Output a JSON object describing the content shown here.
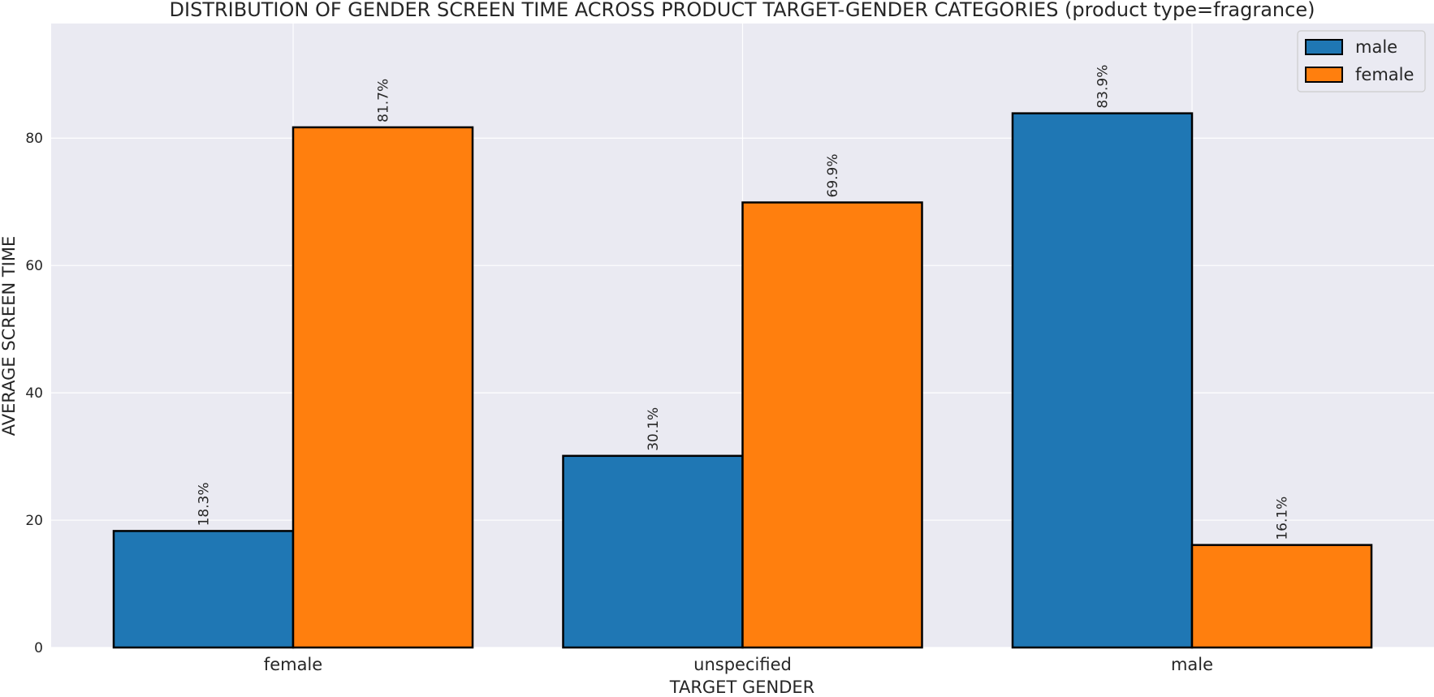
{
  "chart_data": {
    "type": "bar",
    "title": "DISTRIBUTION OF GENDER SCREEN TIME ACROSS PRODUCT TARGET-GENDER CATEGORIES (product type=fragrance)",
    "xlabel": "TARGET GENDER",
    "ylabel": "AVERAGE SCREEN TIME",
    "categories": [
      "female",
      "unspecified",
      "male"
    ],
    "series": [
      {
        "name": "male",
        "color": "#1f77b4",
        "values": [
          18.3,
          30.1,
          83.9
        ],
        "labels": [
          "18.3%",
          "30.1%",
          "83.9%"
        ]
      },
      {
        "name": "female",
        "color": "#ff7f0e",
        "values": [
          81.7,
          69.9,
          16.1
        ],
        "labels": [
          "81.7%",
          "69.9%",
          "16.1%"
        ]
      }
    ],
    "ylim": [
      0,
      98
    ],
    "yticks": [
      0,
      20,
      40,
      60,
      80
    ],
    "grid": true,
    "legend_position": "top-right",
    "background": "#eaeaf2"
  }
}
